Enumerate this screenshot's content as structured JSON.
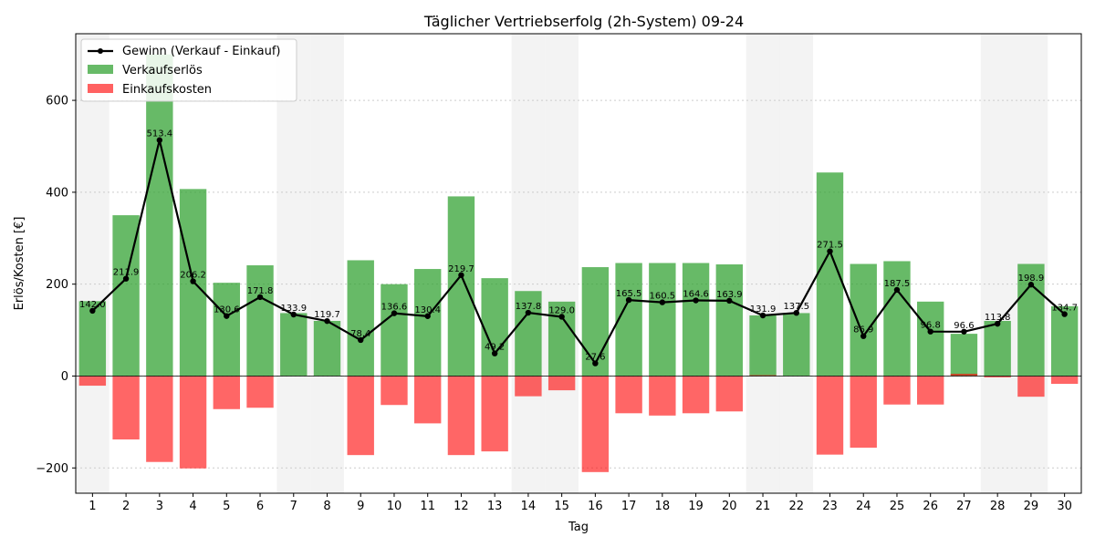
{
  "chart_data": {
    "type": "bar",
    "title": "Täglicher Vertriebserfolg (2h-System) 09-24",
    "xlabel": "Tag",
    "ylabel": "Erlös/Kosten [€]",
    "ylim": [
      -255,
      745
    ],
    "yticks": [
      -200,
      0,
      200,
      400,
      600
    ],
    "grid": true,
    "legend_position": "top-left",
    "categories": [
      "1",
      "2",
      "3",
      "4",
      "5",
      "6",
      "7",
      "8",
      "9",
      "10",
      "11",
      "12",
      "13",
      "14",
      "15",
      "16",
      "17",
      "18",
      "19",
      "20",
      "21",
      "22",
      "23",
      "24",
      "25",
      "26",
      "27",
      "28",
      "29",
      "30"
    ],
    "weekend_days": [
      "1",
      "7",
      "8",
      "14",
      "15",
      "21",
      "22",
      "28",
      "29"
    ],
    "series": [
      {
        "name": "Verkaufserlös",
        "type": "bar",
        "color": "#2ca02c",
        "values": [
          163,
          350,
          700,
          407,
          203,
          241,
          137,
          120,
          252,
          200,
          233,
          391,
          213,
          185,
          162,
          237,
          246,
          246,
          246,
          243,
          132,
          137,
          443,
          244,
          250,
          162,
          92,
          120,
          244,
          152
        ]
      },
      {
        "name": "Einkaufskosten",
        "type": "bar",
        "color": "#ff0000",
        "values": [
          -21,
          -138,
          -187,
          -201,
          -72,
          -69,
          0,
          0,
          -172,
          -63,
          -103,
          -172,
          -164,
          -44,
          -31,
          -209,
          -81,
          -86,
          -81,
          -77,
          2,
          0,
          -171,
          -156,
          -62,
          -62,
          5,
          -3,
          -45,
          -17
        ]
      },
      {
        "name": "Gewinn (Verkauf - Einkauf)",
        "type": "line",
        "color": "#000000",
        "values": [
          142.0,
          211.9,
          513.4,
          206.2,
          130.6,
          171.8,
          133.9,
          119.7,
          78.4,
          136.6,
          130.4,
          219.7,
          49.2,
          137.8,
          129.0,
          27.6,
          165.5,
          160.5,
          164.6,
          163.9,
          131.9,
          137.5,
          271.5,
          86.9,
          187.5,
          96.8,
          96.6,
          113.8,
          198.9,
          134.7
        ]
      }
    ],
    "data_labels": [
      "142.0",
      "211.9",
      "513.4",
      "206.2",
      "130.6",
      "171.8",
      "133.9",
      "119.7",
      "78.4",
      "136.6",
      "130.4",
      "219.7",
      "49.2",
      "137.8",
      "129.0",
      "27.6",
      "165.5",
      "160.5",
      "164.6",
      "163.9",
      "131.9",
      "137.5",
      "271.5",
      "86.9",
      "187.5",
      "96.8",
      "96.6",
      "113.8",
      "198.9",
      "134.7"
    ]
  }
}
